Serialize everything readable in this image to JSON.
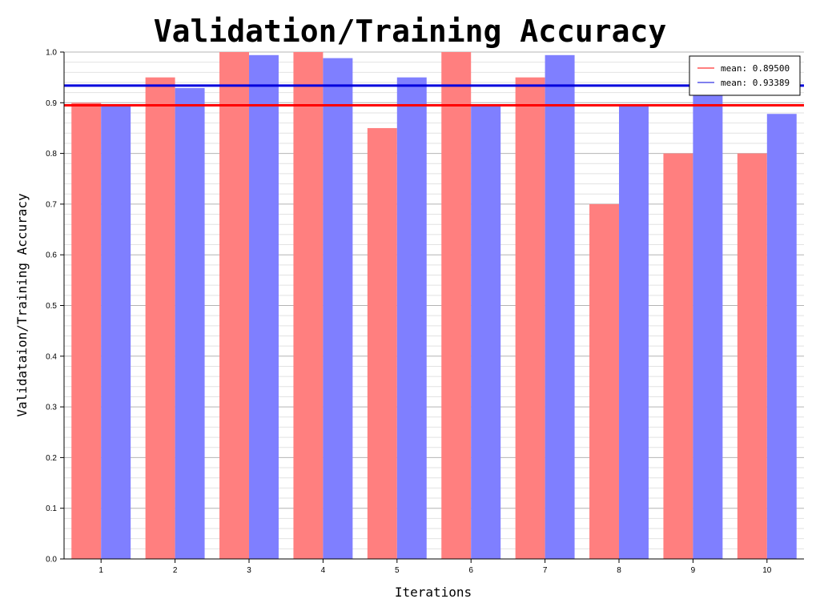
{
  "chart_data": {
    "type": "bar",
    "title": "Validation/Training Accuracy",
    "xlabel": "Iterations",
    "ylabel": "Validataion/Training Accuracy",
    "categories": [
      "1",
      "2",
      "3",
      "4",
      "5",
      "6",
      "7",
      "8",
      "9",
      "10"
    ],
    "ylim": [
      0,
      1
    ],
    "y_ticks": [
      "0.0",
      "0.1",
      "0.2",
      "0.3",
      "0.4",
      "0.5",
      "0.6",
      "0.7",
      "0.8",
      "0.9",
      "1.0"
    ],
    "grid": true,
    "legend_position": "top-right",
    "series": [
      {
        "color": "#ff7f7f",
        "values": [
          0.9,
          0.95,
          1.0,
          1.0,
          0.85,
          1.0,
          0.95,
          0.7,
          0.8,
          0.8
        ]
      },
      {
        "color": "#7f7fff",
        "values": [
          0.895,
          0.929,
          0.994,
          0.988,
          0.95,
          0.895,
          0.994,
          0.895,
          0.918,
          0.878
        ]
      }
    ],
    "mean_lines": [
      {
        "label": "mean: 0.89500",
        "value": 0.895,
        "color": "#ff0000"
      },
      {
        "label": "mean: 0.93389",
        "value": 0.93389,
        "color": "#0000dd"
      }
    ]
  }
}
